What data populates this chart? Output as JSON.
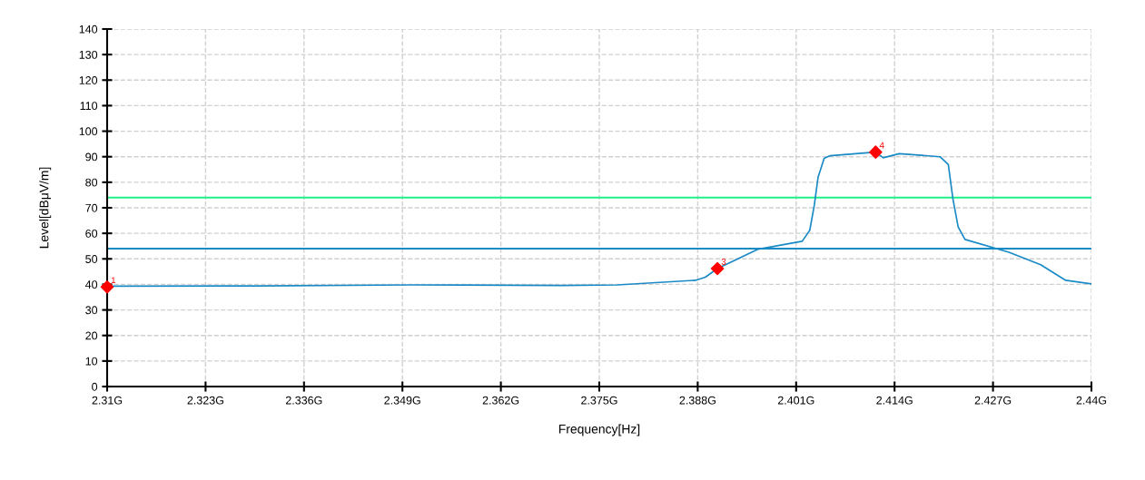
{
  "chart_data": {
    "type": "line",
    "xlabel": "Frequency[Hz]",
    "ylabel": "Level[dBμV/m]",
    "xlim": [
      2.31,
      2.44
    ],
    "ylim": [
      0,
      140
    ],
    "xticks": [
      {
        "value": 2.31,
        "label": "2.31G"
      },
      {
        "value": 2.323,
        "label": "2.323G"
      },
      {
        "value": 2.336,
        "label": "2.336G"
      },
      {
        "value": 2.349,
        "label": "2.349G"
      },
      {
        "value": 2.362,
        "label": "2.362G"
      },
      {
        "value": 2.375,
        "label": "2.375G"
      },
      {
        "value": 2.388,
        "label": "2.388G"
      },
      {
        "value": 2.401,
        "label": "2.401G"
      },
      {
        "value": 2.414,
        "label": "2.414G"
      },
      {
        "value": 2.427,
        "label": "2.427G"
      },
      {
        "value": 2.44,
        "label": "2.44G"
      }
    ],
    "yticks": [
      0,
      10,
      20,
      30,
      40,
      50,
      60,
      70,
      80,
      90,
      100,
      110,
      120,
      130,
      140
    ],
    "grid": true,
    "line_style": "solid",
    "legend": false,
    "ref_lines": [
      {
        "axis": "y",
        "value": 74,
        "color": "#1ef08a"
      },
      {
        "axis": "y",
        "value": 54,
        "color": "#1a8ac6"
      }
    ],
    "series": [
      {
        "color": "#1a8ac6",
        "x": [
          2.31,
          2.33,
          2.35,
          2.37,
          2.3774,
          2.3877,
          2.389,
          2.3906,
          2.396,
          2.4018,
          2.4028,
          2.4034,
          2.4039,
          2.4047,
          2.4055,
          2.4115,
          2.4125,
          2.4146,
          2.42,
          2.4211,
          2.4217,
          2.4224,
          2.4233,
          2.4291,
          2.4333,
          2.4366,
          2.44
        ],
        "values": [
          39.3,
          39.4,
          39.8,
          39.6,
          39.8,
          41.6,
          42.8,
          46.2,
          53.8,
          56.9,
          61.2,
          71,
          82,
          89.4,
          90.4,
          91.8,
          89.6,
          91.2,
          90,
          86.9,
          73.6,
          62.5,
          57.6,
          52.6,
          47.7,
          41.6,
          40.2
        ]
      },
      {
        "type": "scatter",
        "color": "#ff0000",
        "marker": "diamond",
        "x": [
          2.31,
          2.3906,
          2.4115
        ],
        "values": [
          39,
          46.2,
          91.8
        ]
      }
    ],
    "annotations": [
      {
        "text": "1",
        "x": 2.31,
        "y": 39
      },
      {
        "text": "3",
        "x": 2.3906,
        "y": 46.2
      },
      {
        "text": "4",
        "x": 2.4115,
        "y": 91.8
      }
    ]
  }
}
